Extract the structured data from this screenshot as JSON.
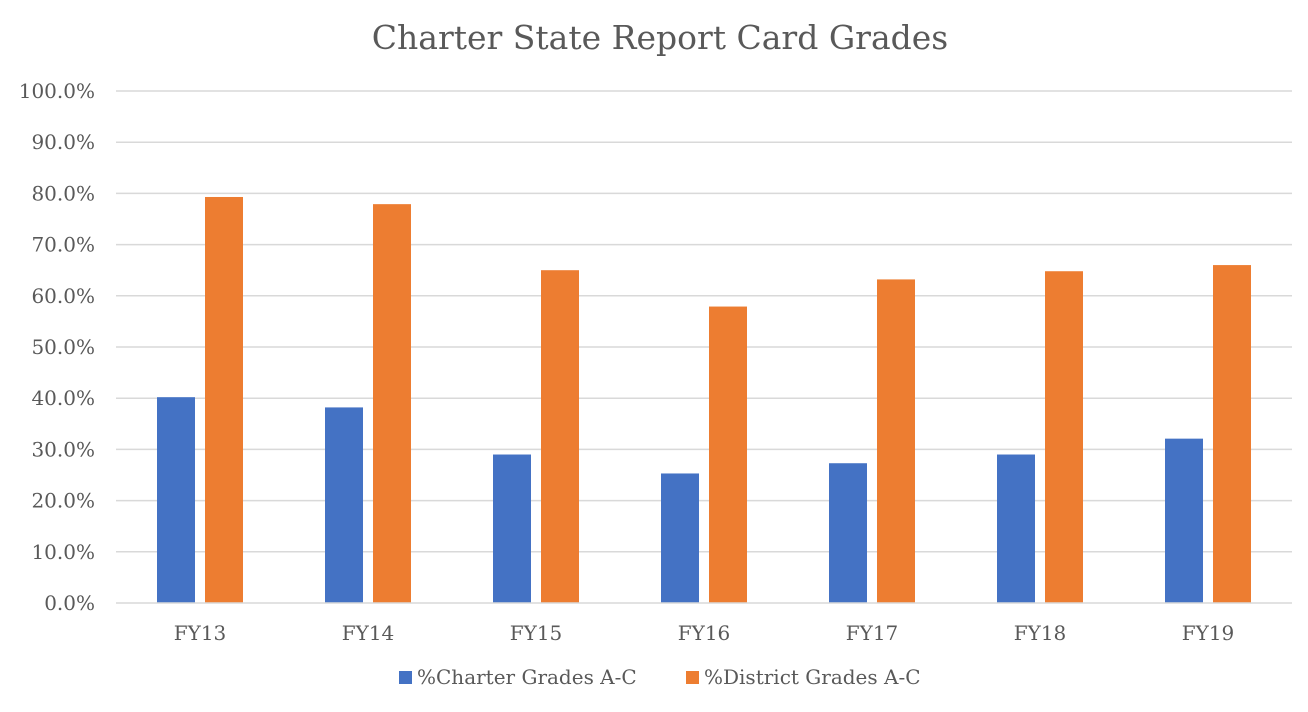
{
  "chart_data": {
    "type": "bar",
    "title": "Charter State Report Card Grades",
    "xlabel": "",
    "ylabel": "",
    "categories": [
      "FY13",
      "FY14",
      "FY15",
      "FY16",
      "FY17",
      "FY18",
      "FY19"
    ],
    "series": [
      {
        "name": "%Charter Grades A-C",
        "color": "#4472c4",
        "values": [
          40.2,
          38.2,
          29.0,
          25.3,
          27.3,
          29.0,
          32.1
        ]
      },
      {
        "name": "%District Grades A-C",
        "color": "#ed7d31",
        "values": [
          79.3,
          77.9,
          65.0,
          57.9,
          63.2,
          64.8,
          66.0
        ]
      }
    ],
    "ylim": [
      0,
      100
    ],
    "yticks": [
      0,
      10,
      20,
      30,
      40,
      50,
      60,
      70,
      80,
      90,
      100
    ],
    "ytick_labels": [
      "0.0%",
      "10.0%",
      "20.0%",
      "30.0%",
      "40.0%",
      "50.0%",
      "60.0%",
      "70.0%",
      "80.0%",
      "90.0%",
      "100.0%"
    ],
    "grid": true,
    "legend_position": "bottom"
  }
}
